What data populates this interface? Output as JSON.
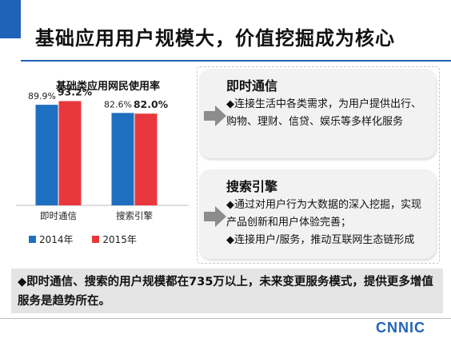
{
  "title": "基础应用用户规模大，价值挖掘成为核心",
  "chart_data": {
    "type": "bar",
    "title": "基础类应用网民使用率",
    "categories": [
      "即时通信",
      "搜索引擎"
    ],
    "series": [
      {
        "name": "2014年",
        "color": "#1f6fc0",
        "values": [
          89.9,
          82.6
        ],
        "labels": [
          "89.9%",
          "82.6%"
        ]
      },
      {
        "name": "2015年",
        "color": "#e8383d",
        "values": [
          93.2,
          82.0
        ],
        "labels": [
          "93.2%",
          "82.0%"
        ]
      }
    ],
    "ylim": [
      0,
      100
    ],
    "grid": false,
    "legend_position": "bottom"
  },
  "boxes": [
    {
      "heading": "即时通信",
      "text": "◆连接生活中各类需求，为用户提供出行、购物、理财、信贷、娱乐等多样化服务",
      "icon": "gray-arrow-icon"
    },
    {
      "heading": "搜索引擎",
      "text1": "◆通过对用户行为大数据的深入挖掘，实现产品创新和用户体验完善；",
      "text2": "◆连接用户/服务，推动互联网生态链形成",
      "icon": "gray-arrow-icon"
    }
  ],
  "footer": "◆即时通信、搜索的用户规模都在735万以上，未来变更服务模式，提供更多增值服务是趋势所在。",
  "logo": "CNNIC",
  "colors": {
    "accent": "#1f63b8",
    "bar2014": "#1f6fc0",
    "bar2015": "#e8383d"
  }
}
